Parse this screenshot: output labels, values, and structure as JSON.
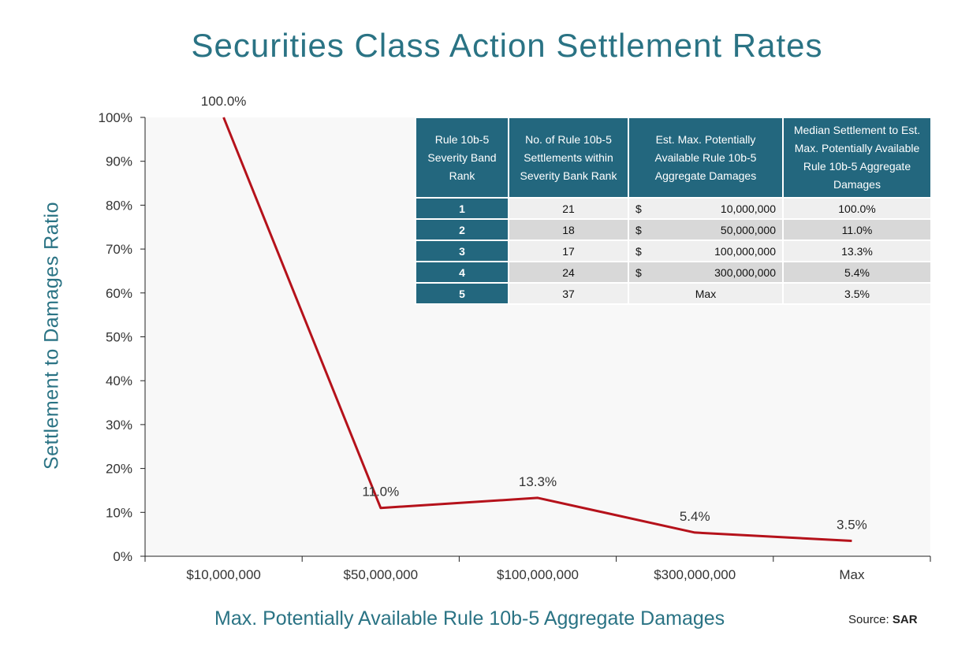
{
  "chart_data": {
    "type": "line",
    "title": "Securities Class Action Settlement Rates",
    "xlabel": "Max. Potentially Available Rule 10b-5 Aggregate Damages",
    "ylabel": "Settlement to Damages Ratio",
    "categories": [
      "$10,000,000",
      "$50,000,000",
      "$100,000,000",
      "$300,000,000",
      "Max"
    ],
    "values": [
      100.0,
      11.0,
      13.3,
      5.4,
      3.5
    ],
    "data_labels": [
      "100.0%",
      "11.0%",
      "13.3%",
      "5.4%",
      "3.5%"
    ],
    "ylim": [
      0,
      100
    ],
    "yticks": [
      "0%",
      "10%",
      "20%",
      "30%",
      "40%",
      "50%",
      "60%",
      "70%",
      "80%",
      "90%",
      "100%"
    ],
    "line_color": "#b5121b",
    "grid": false,
    "source_prefix": "Source:",
    "source_name": "SAR"
  },
  "table": {
    "headers": [
      "Rule 10b-5 Severity Band Rank",
      "No. of Rule 10b-5 Settlements within Severity Bank Rank",
      "Est. Max. Potentially Available Rule 10b-5 Aggregate Damages",
      "Median Settlement to Est. Max. Potentially Available Rule 10b-5 Aggregate Damages"
    ],
    "rows": [
      {
        "rank": "1",
        "count": "21",
        "currency": "$",
        "damages": "10,000,000",
        "median": "100.0%"
      },
      {
        "rank": "2",
        "count": "18",
        "currency": "$",
        "damages": "50,000,000",
        "median": "11.0%"
      },
      {
        "rank": "3",
        "count": "17",
        "currency": "$",
        "damages": "100,000,000",
        "median": "13.3%"
      },
      {
        "rank": "4",
        "count": "24",
        "currency": "$",
        "damages": "300,000,000",
        "median": "5.4%"
      },
      {
        "rank": "5",
        "count": "37",
        "currency": "",
        "damages": "Max",
        "median": "3.5%"
      }
    ]
  }
}
